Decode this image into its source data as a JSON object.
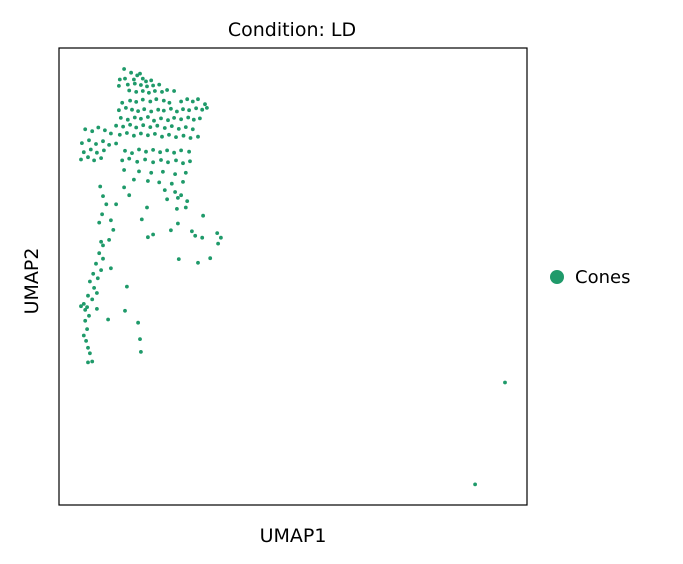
{
  "chart_data": {
    "type": "scatter",
    "title": "Condition: LD",
    "xlabel": "UMAP1",
    "ylabel": "UMAP2",
    "xlim": [
      0,
      100
    ],
    "ylim": [
      0,
      100
    ],
    "grid": false,
    "legend_position": "right",
    "series": [
      {
        "name": "Cones",
        "color": "#1f9a6a",
        "points": [
          [
            13.9,
            95.4
          ],
          [
            15.4,
            94.6
          ],
          [
            16.7,
            94.0
          ],
          [
            17.3,
            94.4
          ],
          [
            13.0,
            93.1
          ],
          [
            14.1,
            93.3
          ],
          [
            16.0,
            93.1
          ],
          [
            17.9,
            93.3
          ],
          [
            18.6,
            92.7
          ],
          [
            19.7,
            92.9
          ],
          [
            12.8,
            91.7
          ],
          [
            14.7,
            92.0
          ],
          [
            16.2,
            92.2
          ],
          [
            17.5,
            91.9
          ],
          [
            18.8,
            91.6
          ],
          [
            20.1,
            91.8
          ],
          [
            21.4,
            92.0
          ],
          [
            15.0,
            90.7
          ],
          [
            16.5,
            90.4
          ],
          [
            17.9,
            90.6
          ],
          [
            19.2,
            90.2
          ],
          [
            20.5,
            90.6
          ],
          [
            22.0,
            90.4
          ],
          [
            23.1,
            90.8
          ],
          [
            24.6,
            90.6
          ],
          [
            26.1,
            88.3
          ],
          [
            27.4,
            88.8
          ],
          [
            28.6,
            88.3
          ],
          [
            29.7,
            88.8
          ],
          [
            31.2,
            87.7
          ],
          [
            31.6,
            86.9
          ],
          [
            30.6,
            86.5
          ],
          [
            29.3,
            86.8
          ],
          [
            27.8,
            86.4
          ],
          [
            26.5,
            86.6
          ],
          [
            25.2,
            86.1
          ],
          [
            23.9,
            86.7
          ],
          [
            22.4,
            86.3
          ],
          [
            21.2,
            86.5
          ],
          [
            19.7,
            86.1
          ],
          [
            18.2,
            86.6
          ],
          [
            16.9,
            86.2
          ],
          [
            15.6,
            86.5
          ],
          [
            14.3,
            86.9
          ],
          [
            12.8,
            86.4
          ],
          [
            13.5,
            88.0
          ],
          [
            15.2,
            88.5
          ],
          [
            16.5,
            88.2
          ],
          [
            17.9,
            88.7
          ],
          [
            19.5,
            88.3
          ],
          [
            20.8,
            88.8
          ],
          [
            22.4,
            88.5
          ],
          [
            23.6,
            88.0
          ],
          [
            13.2,
            84.7
          ],
          [
            14.7,
            84.3
          ],
          [
            16.2,
            84.8
          ],
          [
            17.5,
            84.5
          ],
          [
            19.0,
            84.9
          ],
          [
            20.3,
            84.1
          ],
          [
            21.8,
            84.6
          ],
          [
            23.3,
            84.2
          ],
          [
            24.6,
            84.7
          ],
          [
            26.1,
            84.4
          ],
          [
            27.6,
            84.8
          ],
          [
            28.8,
            84.3
          ],
          [
            30.1,
            84.6
          ],
          [
            12.2,
            83.0
          ],
          [
            13.7,
            82.8
          ],
          [
            15.2,
            83.2
          ],
          [
            16.5,
            82.6
          ],
          [
            18.0,
            83.1
          ],
          [
            19.5,
            82.7
          ],
          [
            21.0,
            83.0
          ],
          [
            22.6,
            82.5
          ],
          [
            24.1,
            82.9
          ],
          [
            25.6,
            82.3
          ],
          [
            27.1,
            82.7
          ],
          [
            28.6,
            82.2
          ],
          [
            13.0,
            81.0
          ],
          [
            14.5,
            81.4
          ],
          [
            16.0,
            80.8
          ],
          [
            17.5,
            81.3
          ],
          [
            19.0,
            80.9
          ],
          [
            20.5,
            81.2
          ],
          [
            22.0,
            80.6
          ],
          [
            23.5,
            81.0
          ],
          [
            25.0,
            80.5
          ],
          [
            26.6,
            80.8
          ],
          [
            28.1,
            80.3
          ],
          [
            29.7,
            80.6
          ],
          [
            5.6,
            82.2
          ],
          [
            7.1,
            81.8
          ],
          [
            8.4,
            82.6
          ],
          [
            9.8,
            82.0
          ],
          [
            11.1,
            81.3
          ],
          [
            4.9,
            79.2
          ],
          [
            6.4,
            79.8
          ],
          [
            7.9,
            79.0
          ],
          [
            9.4,
            79.6
          ],
          [
            10.7,
            78.8
          ],
          [
            12.2,
            79.1
          ],
          [
            5.3,
            77.2
          ],
          [
            6.8,
            77.8
          ],
          [
            8.1,
            77.1
          ],
          [
            9.6,
            77.6
          ],
          [
            4.7,
            75.6
          ],
          [
            6.2,
            76.1
          ],
          [
            7.5,
            75.4
          ],
          [
            9.0,
            75.9
          ],
          [
            14.1,
            77.5
          ],
          [
            15.6,
            77.0
          ],
          [
            17.1,
            77.8
          ],
          [
            18.6,
            77.3
          ],
          [
            20.1,
            77.7
          ],
          [
            21.6,
            77.2
          ],
          [
            23.1,
            77.6
          ],
          [
            24.6,
            77.1
          ],
          [
            26.1,
            77.6
          ],
          [
            27.8,
            77.3
          ],
          [
            13.5,
            75.4
          ],
          [
            15.0,
            75.8
          ],
          [
            16.7,
            75.1
          ],
          [
            18.4,
            75.6
          ],
          [
            20.1,
            75.0
          ],
          [
            21.8,
            75.5
          ],
          [
            23.3,
            75.0
          ],
          [
            25.0,
            75.4
          ],
          [
            26.5,
            74.8
          ],
          [
            28.0,
            75.2
          ],
          [
            13.9,
            73.3
          ],
          [
            17.1,
            73.0
          ],
          [
            19.7,
            72.7
          ],
          [
            22.2,
            72.9
          ],
          [
            24.8,
            72.4
          ],
          [
            27.1,
            72.7
          ],
          [
            16.0,
            71.2
          ],
          [
            19.0,
            70.9
          ],
          [
            21.4,
            70.6
          ],
          [
            24.1,
            70.3
          ],
          [
            26.5,
            70.7
          ],
          [
            22.6,
            68.9
          ],
          [
            24.8,
            68.5
          ],
          [
            26.1,
            67.8
          ],
          [
            23.1,
            66.9
          ],
          [
            25.4,
            67.2
          ],
          [
            27.4,
            66.5
          ],
          [
            25.2,
            64.8
          ],
          [
            27.1,
            65.1
          ],
          [
            8.8,
            69.7
          ],
          [
            9.4,
            67.6
          ],
          [
            10.1,
            65.8
          ],
          [
            9.2,
            63.6
          ],
          [
            8.6,
            61.8
          ],
          [
            11.1,
            62.3
          ],
          [
            11.6,
            60.2
          ],
          [
            10.7,
            58.0
          ],
          [
            9.0,
            57.6
          ],
          [
            25.4,
            61.6
          ],
          [
            28.4,
            59.9
          ],
          [
            30.6,
            58.5
          ],
          [
            20.1,
            59.2
          ],
          [
            19.0,
            58.6
          ],
          [
            9.4,
            56.8
          ],
          [
            8.6,
            55.1
          ],
          [
            9.4,
            53.9
          ],
          [
            7.9,
            52.8
          ],
          [
            9.0,
            51.4
          ],
          [
            7.3,
            50.6
          ],
          [
            8.3,
            49.6
          ],
          [
            6.6,
            48.9
          ],
          [
            7.5,
            47.5
          ],
          [
            8.1,
            46.4
          ],
          [
            6.2,
            45.8
          ],
          [
            7.1,
            45.0
          ],
          [
            5.3,
            44.0
          ],
          [
            6.0,
            43.3
          ],
          [
            4.7,
            43.5
          ],
          [
            5.6,
            42.7
          ],
          [
            8.1,
            42.9
          ],
          [
            6.4,
            41.4
          ],
          [
            5.6,
            40.3
          ],
          [
            6.0,
            38.5
          ],
          [
            5.3,
            37.1
          ],
          [
            5.8,
            35.9
          ],
          [
            6.2,
            34.4
          ],
          [
            6.6,
            33.2
          ],
          [
            7.1,
            31.4
          ],
          [
            6.2,
            31.2
          ],
          [
            11.1,
            51.8
          ],
          [
            14.5,
            47.8
          ],
          [
            14.1,
            42.5
          ],
          [
            10.5,
            40.6
          ],
          [
            16.9,
            39.9
          ],
          [
            17.3,
            36.3
          ],
          [
            17.5,
            33.5
          ],
          [
            25.6,
            53.8
          ],
          [
            29.7,
            53.0
          ],
          [
            32.3,
            54.0
          ],
          [
            29.1,
            58.9
          ],
          [
            34.0,
            57.2
          ],
          [
            34.6,
            58.5
          ],
          [
            33.8,
            59.5
          ],
          [
            30.8,
            63.3
          ],
          [
            18.8,
            65.1
          ],
          [
            15.0,
            67.8
          ],
          [
            13.9,
            69.5
          ],
          [
            23.9,
            60.1
          ],
          [
            12.2,
            65.8
          ],
          [
            17.7,
            62.5
          ],
          [
            95.3,
            26.8
          ],
          [
            88.9,
            4.5
          ]
        ]
      }
    ]
  }
}
